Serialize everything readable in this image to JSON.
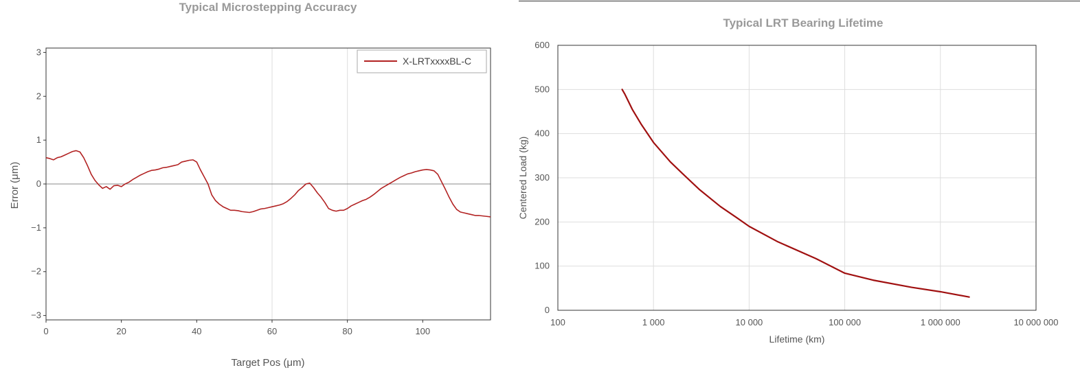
{
  "chart_data": [
    {
      "type": "line",
      "title": "Typical Microstepping Accuracy",
      "xlabel": "Target Pos (μm)",
      "ylabel": "Error (μm)",
      "xlim": [
        0,
        118
      ],
      "ylim": [
        -3.1,
        3.1
      ],
      "xticks": [
        0,
        20,
        40,
        60,
        80,
        100
      ],
      "yticks": [
        3,
        2,
        1,
        0,
        -1,
        -2,
        -3
      ],
      "ytick_labels": [
        "3",
        "2",
        "1",
        "0",
        "−1",
        "−2",
        "−3"
      ],
      "vgrid": [
        60,
        80
      ],
      "zero_line": true,
      "legend_placement": "top-right",
      "color": "#b22222",
      "series": [
        {
          "name": "X-LRTxxxxBL-C",
          "x": [
            0,
            1,
            2,
            3,
            4,
            5,
            6,
            7,
            8,
            9,
            10,
            11,
            12,
            13,
            14,
            15,
            16,
            17,
            18,
            19,
            20,
            21,
            22,
            23,
            24,
            25,
            26,
            27,
            28,
            29,
            30,
            31,
            32,
            33,
            34,
            35,
            36,
            37,
            38,
            39,
            40,
            41,
            42,
            43,
            44,
            45,
            46,
            47,
            48,
            49,
            50,
            51,
            52,
            53,
            54,
            55,
            56,
            57,
            58,
            59,
            60,
            61,
            62,
            63,
            64,
            65,
            66,
            67,
            68,
            69,
            70,
            71,
            72,
            73,
            74,
            75,
            76,
            77,
            78,
            79,
            80,
            81,
            82,
            83,
            84,
            85,
            86,
            87,
            88,
            89,
            90,
            91,
            92,
            93,
            94,
            95,
            96,
            97,
            98,
            99,
            100,
            101,
            102,
            103,
            104,
            105,
            106,
            107,
            108,
            109,
            110,
            111,
            112,
            113,
            114,
            115,
            116,
            117,
            118
          ],
          "y": [
            0.6,
            0.58,
            0.55,
            0.6,
            0.62,
            0.66,
            0.7,
            0.74,
            0.76,
            0.73,
            0.6,
            0.42,
            0.22,
            0.08,
            -0.02,
            -0.1,
            -0.06,
            -0.12,
            -0.04,
            -0.03,
            -0.06,
            0.0,
            0.04,
            0.1,
            0.15,
            0.2,
            0.24,
            0.28,
            0.31,
            0.32,
            0.34,
            0.37,
            0.38,
            0.4,
            0.42,
            0.44,
            0.5,
            0.52,
            0.54,
            0.55,
            0.5,
            0.32,
            0.16,
            0.0,
            -0.25,
            -0.38,
            -0.46,
            -0.52,
            -0.56,
            -0.6,
            -0.6,
            -0.61,
            -0.63,
            -0.64,
            -0.65,
            -0.63,
            -0.6,
            -0.57,
            -0.56,
            -0.54,
            -0.52,
            -0.5,
            -0.48,
            -0.45,
            -0.4,
            -0.33,
            -0.25,
            -0.15,
            -0.08,
            0.0,
            0.02,
            -0.08,
            -0.2,
            -0.3,
            -0.42,
            -0.56,
            -0.6,
            -0.62,
            -0.6,
            -0.6,
            -0.56,
            -0.5,
            -0.46,
            -0.42,
            -0.38,
            -0.35,
            -0.3,
            -0.24,
            -0.17,
            -0.1,
            -0.05,
            0.0,
            0.05,
            0.1,
            0.15,
            0.19,
            0.23,
            0.25,
            0.28,
            0.3,
            0.32,
            0.33,
            0.32,
            0.3,
            0.22,
            0.05,
            -0.12,
            -0.3,
            -0.46,
            -0.58,
            -0.64,
            -0.66,
            -0.68,
            -0.7,
            -0.72,
            -0.72,
            -0.73,
            -0.74,
            -0.75
          ]
        }
      ]
    },
    {
      "type": "line",
      "title": "Typical LRT Bearing Lifetime",
      "xlabel": "Lifetime (km)",
      "ylabel": "Centered Load (kg)",
      "xscale": "log",
      "xlim": [
        100,
        10000000
      ],
      "ylim": [
        0,
        600
      ],
      "xticks": [
        100,
        1000,
        10000,
        100000,
        1000000,
        10000000
      ],
      "xtick_labels": [
        "100",
        "1 000",
        "10 000",
        "100 000",
        "1 000 000",
        "10 000 000"
      ],
      "yticks": [
        0,
        100,
        200,
        300,
        400,
        500,
        600
      ],
      "ytick_labels": [
        "0",
        "100",
        "200",
        "300",
        "400",
        "500",
        "600"
      ],
      "grid": true,
      "color": "#a01010",
      "series": [
        {
          "x": [
            470,
            500,
            600,
            750,
            1000,
            1500,
            2000,
            3000,
            5000,
            7500,
            10000,
            20000,
            50000,
            100000,
            200000,
            500000,
            1000000,
            2000000
          ],
          "y": [
            500,
            490,
            455,
            420,
            380,
            336,
            310,
            274,
            235,
            209,
            190,
            155,
            117,
            84,
            68,
            52,
            42,
            30
          ]
        }
      ]
    }
  ]
}
